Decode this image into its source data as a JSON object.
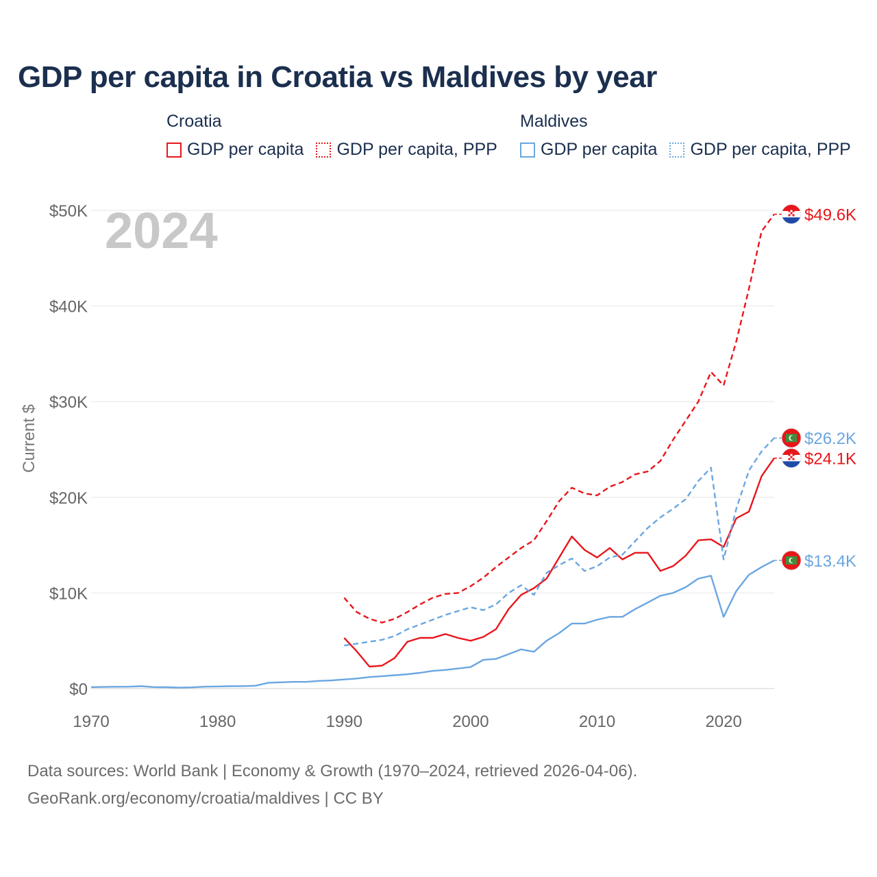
{
  "title": "GDP per capita in Croatia vs Maldives by year",
  "legend": {
    "croatia": {
      "label": "Croatia",
      "items": [
        "GDP per capita",
        "GDP per capita, PPP"
      ]
    },
    "maldives": {
      "label": "Maldives",
      "items": [
        "GDP per capita",
        "GDP per capita, PPP"
      ]
    }
  },
  "footer": {
    "line1": "Data sources: World Bank | Economy & Growth (1970–2024, retrieved 2026-04-06).",
    "line2": "GeoRank.org/economy/croatia/maldives | CC BY"
  },
  "colors": {
    "croatia": "#e8161b",
    "maldives": "#6aa6e0"
  },
  "chart_data": {
    "type": "line",
    "title": "GDP per capita in Croatia vs Maldives by year",
    "year_watermark": "2024",
    "xlabel": "",
    "ylabel": "Current $",
    "xlim": [
      1970,
      2024
    ],
    "ylim": [
      0,
      50000
    ],
    "x_ticks": [
      1970,
      1980,
      1990,
      2000,
      2010,
      2020
    ],
    "y_ticks": [
      {
        "value": 0,
        "label": "$0"
      },
      {
        "value": 10000,
        "label": "$10K"
      },
      {
        "value": 20000,
        "label": "$20K"
      },
      {
        "value": 30000,
        "label": "$30K"
      },
      {
        "value": 40000,
        "label": "$40K"
      },
      {
        "value": 50000,
        "label": "$50K"
      }
    ],
    "series": [
      {
        "name": "Croatia GDP per capita",
        "country": "croatia",
        "style": "solid",
        "end_label": "$24.1K",
        "x": [
          1990,
          1991,
          1992,
          1993,
          1994,
          1995,
          1996,
          1997,
          1998,
          1999,
          2000,
          2001,
          2002,
          2003,
          2004,
          2005,
          2006,
          2007,
          2008,
          2009,
          2010,
          2011,
          2012,
          2013,
          2014,
          2015,
          2016,
          2017,
          2018,
          2019,
          2020,
          2021,
          2022,
          2023,
          2024
        ],
        "values": [
          5300,
          3900,
          2300,
          2400,
          3200,
          4900,
          5300,
          5300,
          5700,
          5300,
          5000,
          5400,
          6200,
          8300,
          9800,
          10500,
          11500,
          13700,
          15900,
          14500,
          13700,
          14700,
          13500,
          14200,
          14200,
          12300,
          12800,
          13900,
          15500,
          15600,
          14800,
          17800,
          18500,
          22200,
          24100
        ]
      },
      {
        "name": "Croatia GDP per capita, PPP",
        "country": "croatia",
        "style": "dashed",
        "end_label": "$49.6K",
        "x": [
          1990,
          1991,
          1992,
          1993,
          1994,
          1995,
          1996,
          1997,
          1998,
          1999,
          2000,
          2001,
          2002,
          2003,
          2004,
          2005,
          2006,
          2007,
          2008,
          2009,
          2010,
          2011,
          2012,
          2013,
          2014,
          2015,
          2016,
          2017,
          2018,
          2019,
          2020,
          2021,
          2022,
          2023,
          2024
        ],
        "values": [
          9500,
          8000,
          7300,
          6900,
          7300,
          8000,
          8800,
          9500,
          9900,
          10000,
          10700,
          11600,
          12700,
          13700,
          14700,
          15500,
          17500,
          19600,
          21000,
          20400,
          20200,
          21100,
          21600,
          22400,
          22700,
          23800,
          26000,
          28000,
          30000,
          33100,
          31700,
          36300,
          41800,
          47800,
          49600
        ]
      },
      {
        "name": "Maldives GDP per capita",
        "country": "maldives",
        "style": "solid",
        "end_label": "$13.4K",
        "x": [
          1970,
          1971,
          1972,
          1973,
          1974,
          1975,
          1976,
          1977,
          1978,
          1979,
          1980,
          1981,
          1982,
          1983,
          1984,
          1985,
          1986,
          1987,
          1988,
          1989,
          1990,
          1991,
          1992,
          1993,
          1994,
          1995,
          1996,
          1997,
          1998,
          1999,
          2000,
          2001,
          2002,
          2003,
          2004,
          2005,
          2006,
          2007,
          2008,
          2009,
          2010,
          2011,
          2012,
          2013,
          2014,
          2015,
          2016,
          2017,
          2018,
          2019,
          2020,
          2021,
          2022,
          2023,
          2024
        ],
        "values": [
          150,
          170,
          190,
          200,
          250,
          150,
          140,
          100,
          130,
          200,
          220,
          250,
          260,
          300,
          600,
          660,
          700,
          700,
          800,
          850,
          950,
          1050,
          1200,
          1300,
          1400,
          1500,
          1650,
          1850,
          1950,
          2100,
          2250,
          3000,
          3100,
          3600,
          4100,
          3850,
          5000,
          5800,
          6800,
          6800,
          7200,
          7500,
          7500,
          8300,
          9000,
          9700,
          10000,
          10600,
          11500,
          11800,
          7500,
          10200,
          11900,
          12700,
          13400
        ]
      },
      {
        "name": "Maldives GDP per capita, PPP",
        "country": "maldives",
        "style": "dashed",
        "end_label": "$26.2K",
        "x": [
          1990,
          1991,
          1992,
          1993,
          1994,
          1995,
          1996,
          1997,
          1998,
          1999,
          2000,
          2001,
          2002,
          2003,
          2004,
          2005,
          2006,
          2007,
          2008,
          2009,
          2010,
          2011,
          2012,
          2013,
          2014,
          2015,
          2016,
          2017,
          2018,
          2019,
          2020,
          2021,
          2022,
          2023,
          2024
        ],
        "values": [
          4500,
          4700,
          4900,
          5100,
          5500,
          6200,
          6700,
          7200,
          7700,
          8100,
          8500,
          8200,
          8800,
          10000,
          10800,
          9800,
          12100,
          12900,
          13600,
          12300,
          12800,
          13700,
          14000,
          15400,
          16800,
          17900,
          18800,
          19800,
          21700,
          23100,
          13500,
          18800,
          22800,
          24800,
          26200
        ]
      }
    ]
  }
}
